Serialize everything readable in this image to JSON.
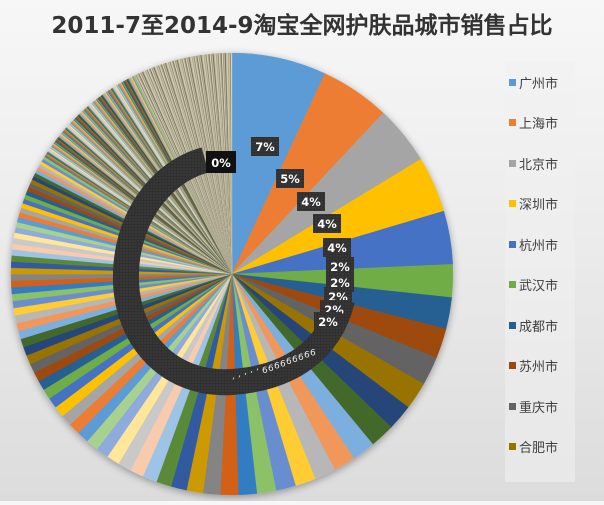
{
  "chart_data": {
    "type": "pie",
    "title": "2011-7至2014-9淘宝全网护肤品城市销售占比",
    "start_angle": "12 o'clock, clockwise",
    "legend_position": "right",
    "legend": [
      "广州市",
      "上海市",
      "北京市",
      "深圳市",
      "杭州市",
      "武汉市",
      "成都市",
      "苏州市",
      "重庆市",
      "合肥市"
    ],
    "categories": [
      "广州市",
      "上海市",
      "北京市",
      "深圳市",
      "杭州市",
      "武汉市",
      "成都市",
      "苏州市",
      "重庆市",
      "合肥市"
    ],
    "values_percent": [
      7,
      5,
      4,
      4,
      4,
      2,
      2,
      2,
      2,
      2
    ],
    "data_labels": [
      "7%",
      "5%",
      "4%",
      "4%",
      "4%",
      "2%",
      "2%",
      "2%",
      "2%",
      "2%",
      "...",
      "0%"
    ],
    "note": "Hundreds of additional small city slices (mostly ~1% down to 0%) fill the remainder of the pie; labels overlap into a dark spiral ending at 0%.",
    "tail_slice_count_estimate": 300
  },
  "title": "2011-7至2014-9淘宝全网护肤品城市销售占比",
  "legend": [
    {
      "label": "广州市",
      "color": "#5b9bd5"
    },
    {
      "label": "上海市",
      "color": "#ed7d31"
    },
    {
      "label": "北京市",
      "color": "#a5a5a5"
    },
    {
      "label": "深圳市",
      "color": "#ffc000"
    },
    {
      "label": "杭州市",
      "color": "#4472c4"
    },
    {
      "label": "武汉市",
      "color": "#70ad47"
    },
    {
      "label": "成都市",
      "color": "#255e91"
    },
    {
      "label": "苏州市",
      "color": "#9e480e"
    },
    {
      "label": "重庆市",
      "color": "#636363"
    },
    {
      "label": "合肥市",
      "color": "#997300"
    }
  ],
  "palette_cycle": [
    "#5b9bd5",
    "#ed7d31",
    "#a5a5a5",
    "#ffc000",
    "#4472c4",
    "#70ad47",
    "#255e91",
    "#9e480e",
    "#636363",
    "#997300",
    "#264478",
    "#43682b",
    "#7cafdd",
    "#f1975a",
    "#b7b7b7",
    "#ffcd33",
    "#698ed0",
    "#8cc168",
    "#327dc2",
    "#d26012",
    "#848484",
    "#cc9a00",
    "#335aa1",
    "#5a8a39",
    "#9dc3e6",
    "#f8cbad",
    "#c9c9c9",
    "#ffe699",
    "#8faadc",
    "#a9d18e"
  ],
  "tail_palette": [
    "#a9a98f",
    "#c8c2a6",
    "#8e8a73",
    "#d9d4bc",
    "#b3ab8c",
    "#7a7763",
    "#e0d9c1",
    "#9c9880",
    "#c4b99a",
    "#6f6e5c",
    "#bfb8a0",
    "#d8cfb4"
  ]
}
